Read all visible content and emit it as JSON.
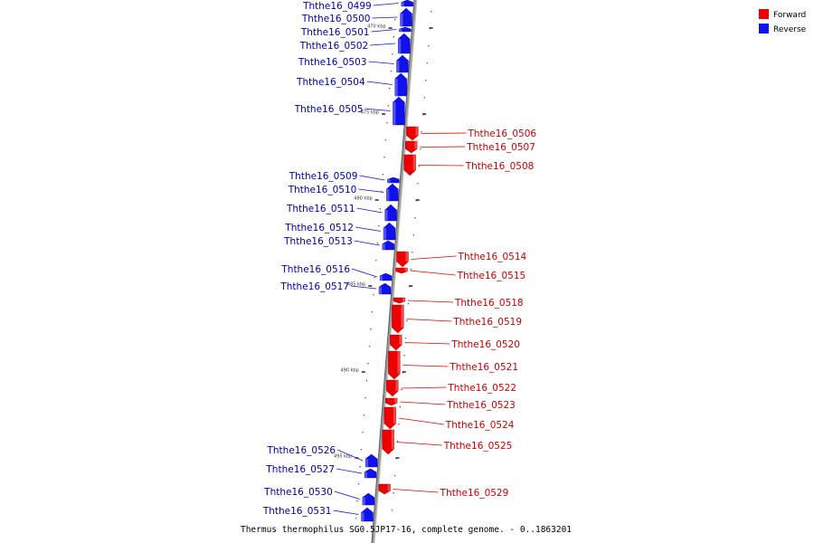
{
  "caption": "Thermus thermophilus SG0.5JP17-16, complete genome. - 0..1863201",
  "legend": [
    {
      "label": "Forward",
      "color": "#ee0000"
    },
    {
      "label": "Reverse",
      "color": "#1111ee"
    }
  ],
  "colors": {
    "forward": "#ee0000",
    "reverse": "#1111ee",
    "axis": "#999999"
  },
  "kbp_markers": [
    "470 kbp",
    "475 kbp",
    "480 kbp",
    "485 kbp",
    "490 kbp",
    "495 kbp"
  ],
  "genes": [
    {
      "name": "Ththe16_0499",
      "strand": "reverse"
    },
    {
      "name": "Ththe16_0500",
      "strand": "reverse"
    },
    {
      "name": "Ththe16_0501",
      "strand": "reverse"
    },
    {
      "name": "Ththe16_0502",
      "strand": "reverse"
    },
    {
      "name": "Ththe16_0503",
      "strand": "reverse"
    },
    {
      "name": "Ththe16_0504",
      "strand": "reverse"
    },
    {
      "name": "Ththe16_0505",
      "strand": "reverse"
    },
    {
      "name": "Ththe16_0506",
      "strand": "forward"
    },
    {
      "name": "Ththe16_0507",
      "strand": "forward"
    },
    {
      "name": "Ththe16_0508",
      "strand": "forward"
    },
    {
      "name": "Ththe16_0509",
      "strand": "reverse"
    },
    {
      "name": "Ththe16_0510",
      "strand": "reverse"
    },
    {
      "name": "Ththe16_0511",
      "strand": "reverse"
    },
    {
      "name": "Ththe16_0512",
      "strand": "reverse"
    },
    {
      "name": "Ththe16_0513",
      "strand": "reverse"
    },
    {
      "name": "Ththe16_0514",
      "strand": "forward"
    },
    {
      "name": "Ththe16_0515",
      "strand": "forward"
    },
    {
      "name": "Ththe16_0516",
      "strand": "reverse"
    },
    {
      "name": "Ththe16_0517",
      "strand": "reverse"
    },
    {
      "name": "Ththe16_0518",
      "strand": "forward"
    },
    {
      "name": "Ththe16_0519",
      "strand": "forward"
    },
    {
      "name": "Ththe16_0520",
      "strand": "forward"
    },
    {
      "name": "Ththe16_0521",
      "strand": "forward"
    },
    {
      "name": "Ththe16_0522",
      "strand": "forward"
    },
    {
      "name": "Ththe16_0523",
      "strand": "forward"
    },
    {
      "name": "Ththe16_0524",
      "strand": "forward"
    },
    {
      "name": "Ththe16_0525",
      "strand": "forward"
    },
    {
      "name": "Ththe16_0526",
      "strand": "reverse"
    },
    {
      "name": "Ththe16_0527",
      "strand": "reverse"
    },
    {
      "name": "Ththe16_0529",
      "strand": "forward"
    },
    {
      "name": "Ththe16_0530",
      "strand": "reverse"
    },
    {
      "name": "Ththe16_0531",
      "strand": "reverse"
    }
  ]
}
